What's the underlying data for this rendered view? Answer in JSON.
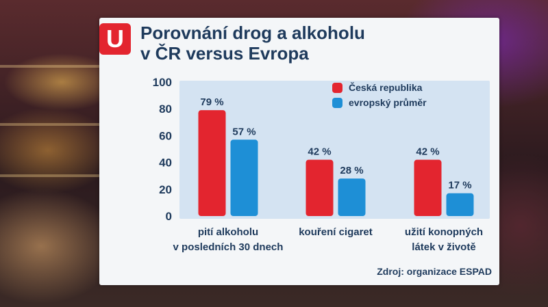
{
  "logo": {
    "letter": "U"
  },
  "title": {
    "line1": "Porovnání drog a alkoholu",
    "line2": "v ČR versus Evropa"
  },
  "source": "Zdroj: organizace ESPAD",
  "colors": {
    "cz": "#e3252f",
    "eu": "#1e8fd6",
    "plot_bg": "#d4e3f2",
    "text": "#1e3a5c"
  },
  "chart_data": {
    "type": "bar",
    "categories": [
      [
        "pití alkoholu",
        "v posledních 30 dnech"
      ],
      [
        "kouření cigaret"
      ],
      [
        "užití konopných",
        "látek v životě"
      ]
    ],
    "series": [
      {
        "name": "Česká republika",
        "values": [
          79,
          42,
          42
        ],
        "labels": [
          "79 %",
          "42 %",
          "42 %"
        ]
      },
      {
        "name": "evropský průměr",
        "values": [
          57,
          28,
          17
        ],
        "labels": [
          "57 %",
          "28 %",
          "17 %"
        ]
      }
    ],
    "ylim": [
      0,
      100
    ],
    "yticks": [
      "0",
      "20",
      "40",
      "60",
      "80",
      "100"
    ],
    "legend": "top-right",
    "grid": false
  }
}
